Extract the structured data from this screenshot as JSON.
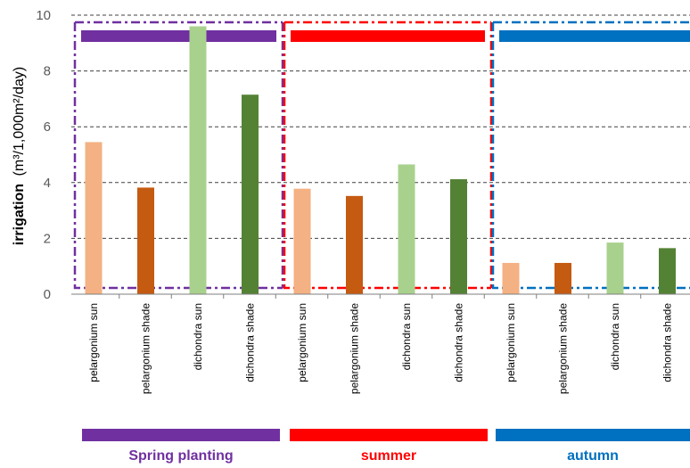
{
  "chart_data": {
    "type": "bar",
    "ylabel_bold": "irrigation",
    "ylabel_rest": "(m³/1,000m²/day)",
    "ylim": [
      0,
      10
    ],
    "yticks": [
      "0",
      "2",
      "4",
      "6",
      "8",
      "10"
    ],
    "grid": true,
    "groups": [
      {
        "name": "Spring planting",
        "color": "#7030A0",
        "categories": [
          "pelargonium sun",
          "pelargonium shade",
          "dichondra sun",
          "dichondra shade"
        ],
        "values": [
          5.45,
          3.82,
          9.6,
          7.15
        ]
      },
      {
        "name": "summer",
        "color": "#FF0000",
        "categories": [
          "pelargonium sun",
          "pelargonium shade",
          "dichondra sun",
          "dichondra shade"
        ],
        "values": [
          3.78,
          3.52,
          4.65,
          4.12
        ]
      },
      {
        "name": "autumn",
        "color": "#0070C0",
        "categories": [
          "pelargonium sun",
          "pelargonium shade",
          "dichondra sun",
          "dichondra shade"
        ],
        "values": [
          1.12,
          1.12,
          1.85,
          1.65
        ]
      }
    ],
    "bar_colors": [
      "#F4B183",
      "#C55A11",
      "#A9D18E",
      "#548235"
    ]
  }
}
